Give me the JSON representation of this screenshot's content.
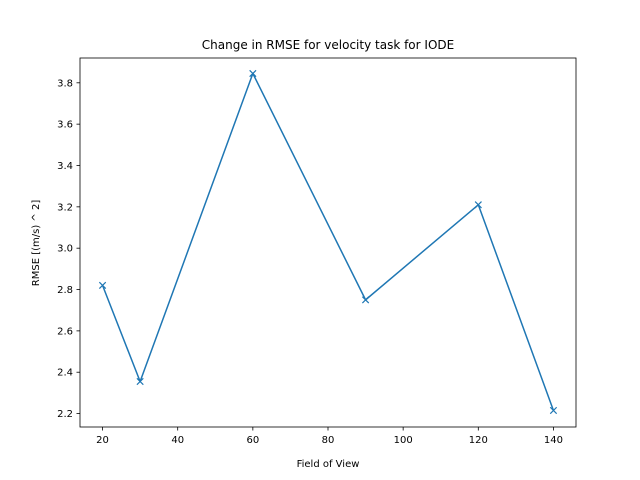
{
  "chart_data": {
    "type": "line",
    "title": "Change in RMSE for velocity task for IODE",
    "xlabel": "Field of View",
    "ylabel": "RMSE [(m/s) ^ 2]",
    "xlim": [
      14,
      146
    ],
    "ylim": [
      2.135,
      3.92
    ],
    "xticks": [
      20,
      40,
      60,
      80,
      100,
      120,
      140
    ],
    "yticks": [
      2.2,
      2.4,
      2.6,
      2.8,
      3.0,
      3.2,
      3.4,
      3.6,
      3.8
    ],
    "ytick_labels": [
      "2.2",
      "2.4",
      "2.6",
      "2.8",
      "3.0",
      "3.2",
      "3.4",
      "3.6",
      "3.8"
    ],
    "grid": false,
    "marker": "x",
    "color": "#1f77b4",
    "series": [
      {
        "x": [
          20,
          30,
          60,
          90,
          120,
          140
        ],
        "y": [
          2.82,
          2.355,
          3.845,
          2.75,
          3.21,
          2.215
        ]
      }
    ]
  }
}
